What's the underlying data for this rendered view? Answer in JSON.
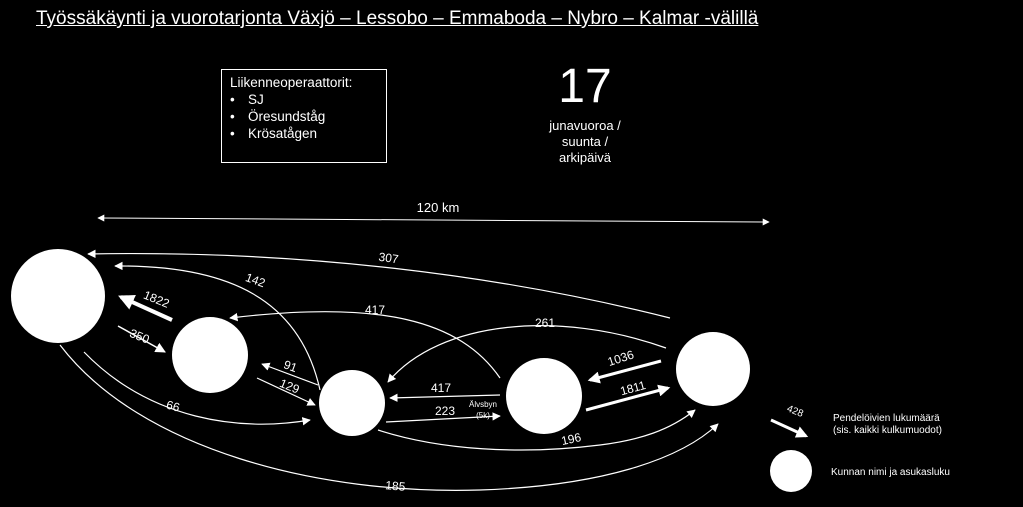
{
  "title": "Työssäkäynti  ja  vuorotarjonta  Växjö  – Lessobo  – Emmaboda  – Nybro  – Kalmar  -välillä",
  "operators": {
    "heading": "Liikenneoperaattorit:",
    "items": [
      "SJ",
      "Öresundståg",
      "Krösatågen"
    ]
  },
  "frequency": {
    "number": "17",
    "unit_lines": [
      "junavuoroa /",
      "suunta /",
      "arkipäivä"
    ]
  },
  "distance_label": "120 km",
  "commuting_flows": [
    "307",
    "142",
    "1822",
    "417",
    "350",
    "261",
    "91",
    "129",
    "66",
    "1036",
    "417",
    "1811",
    "223",
    "196",
    "185"
  ],
  "station_label": {
    "line1": "Älvsbyn",
    "line2": "(5k)"
  },
  "legend": {
    "arrow_value": "428",
    "arrow_text_line1": "Pendelöivien  lukumäärä",
    "arrow_text_line2": "(sis. kaikki kulkumuodot)",
    "circle_text": "Kunnan nimi ja asukasluku"
  },
  "colors": {
    "background": "#000000",
    "foreground": "#ffffff"
  }
}
